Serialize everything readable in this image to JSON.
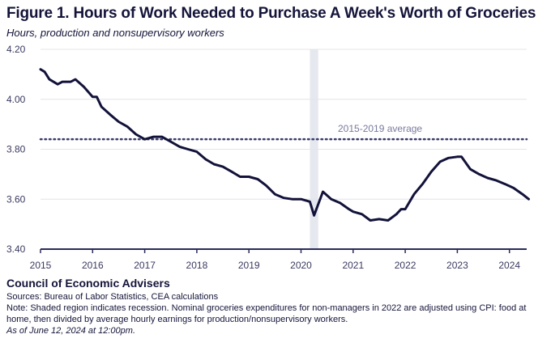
{
  "chart_data": {
    "type": "line",
    "title": "Figure 1. Hours of Work Needed to Purchase A Week's Worth of Groceries",
    "subtitle": "Hours, production and nonsupervisory workers",
    "xlabel": "",
    "ylabel": "",
    "xlim": [
      2015,
      2024.4
    ],
    "ylim": [
      3.4,
      4.2
    ],
    "x_ticks": [
      "2015",
      "2016",
      "2017",
      "2018",
      "2019",
      "2020",
      "2021",
      "2022",
      "2023",
      "2024"
    ],
    "y_ticks": [
      "4.20",
      "4.00",
      "3.80",
      "3.60",
      "3.40"
    ],
    "grid": "horizontal",
    "average": {
      "label": "2015-2019 average",
      "value": 3.84
    },
    "recession": [
      2020.17,
      2020.33
    ],
    "series": [
      {
        "name": "Hours of work",
        "color": "#12123a",
        "x": [
          2015.0,
          2015.08,
          2015.17,
          2015.33,
          2015.42,
          2015.58,
          2015.67,
          2015.83,
          2016.0,
          2016.08,
          2016.17,
          2016.33,
          2016.5,
          2016.67,
          2016.83,
          2017.0,
          2017.17,
          2017.33,
          2017.5,
          2017.67,
          2017.83,
          2018.0,
          2018.17,
          2018.33,
          2018.5,
          2018.67,
          2018.83,
          2019.0,
          2019.17,
          2019.33,
          2019.5,
          2019.67,
          2019.83,
          2020.0,
          2020.17,
          2020.25,
          2020.42,
          2020.58,
          2020.75,
          2020.92,
          2021.0,
          2021.17,
          2021.33,
          2021.5,
          2021.67,
          2021.83,
          2021.92,
          2022.0,
          2022.17,
          2022.33,
          2022.5,
          2022.67,
          2022.83,
          2023.0,
          2023.08,
          2023.25,
          2023.42,
          2023.58,
          2023.75,
          2023.92,
          2024.08,
          2024.25,
          2024.37
        ],
        "values": [
          4.12,
          4.11,
          4.08,
          4.06,
          4.07,
          4.07,
          4.08,
          4.05,
          4.01,
          4.01,
          3.97,
          3.94,
          3.91,
          3.89,
          3.86,
          3.84,
          3.85,
          3.85,
          3.83,
          3.81,
          3.8,
          3.79,
          3.76,
          3.74,
          3.73,
          3.71,
          3.69,
          3.69,
          3.68,
          3.655,
          3.62,
          3.605,
          3.6,
          3.6,
          3.59,
          3.535,
          3.63,
          3.6,
          3.585,
          3.56,
          3.55,
          3.54,
          3.515,
          3.52,
          3.515,
          3.54,
          3.56,
          3.56,
          3.62,
          3.66,
          3.71,
          3.75,
          3.765,
          3.77,
          3.77,
          3.72,
          3.7,
          3.685,
          3.675,
          3.66,
          3.645,
          3.62,
          3.6
        ]
      }
    ]
  },
  "footer": {
    "org": "Council of Economic Advisers",
    "sources": "Sources: Bureau of Labor Statistics, CEA calculations",
    "note": "Note: Shaded region indicates recession. Nominal groceries expenditures for non-managers in 2022 are adjusted using CPI: food at home, then divided by average hourly earnings for production/nonsupervisory workers.",
    "as_of": "As of June 12, 2024 at 12:00pm."
  }
}
